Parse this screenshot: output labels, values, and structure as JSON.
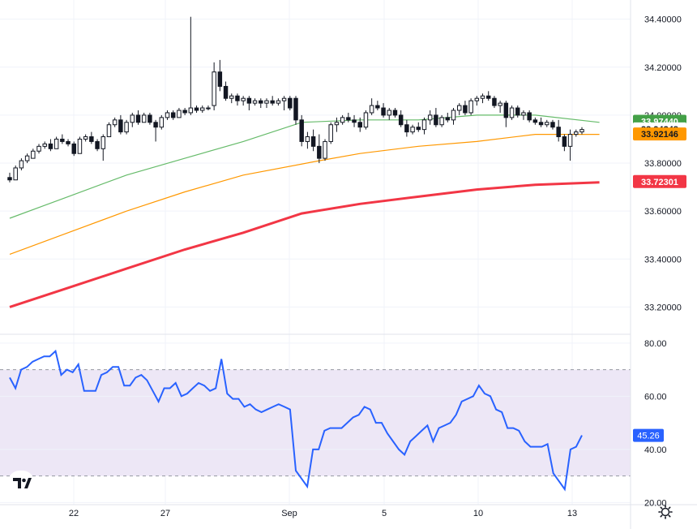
{
  "chart_data": [
    {
      "type": "candlestick",
      "title": "",
      "y_ticks": [
        "34.40000",
        "34.20000",
        "34.00000",
        "33.80000",
        "33.60000",
        "33.40000",
        "33.20000"
      ],
      "ylim": [
        33.1,
        34.48
      ],
      "x_ticks": [
        "22",
        "27",
        "Sep",
        "5",
        "10",
        "13"
      ],
      "candles": [
        [
          33.74,
          33.76,
          33.72,
          33.73
        ],
        [
          33.73,
          33.79,
          33.73,
          33.78
        ],
        [
          33.78,
          33.82,
          33.77,
          33.81
        ],
        [
          33.81,
          33.84,
          33.8,
          33.83
        ],
        [
          33.82,
          33.86,
          33.82,
          33.85
        ],
        [
          33.85,
          33.88,
          33.84,
          33.87
        ],
        [
          33.87,
          33.89,
          33.86,
          33.88
        ],
        [
          33.88,
          33.9,
          33.85,
          33.86
        ],
        [
          33.86,
          33.91,
          33.86,
          33.9
        ],
        [
          33.9,
          33.92,
          33.88,
          33.89
        ],
        [
          33.89,
          33.9,
          33.87,
          33.88
        ],
        [
          33.88,
          33.89,
          33.83,
          33.84
        ],
        [
          33.84,
          33.91,
          33.84,
          33.9
        ],
        [
          33.9,
          33.92,
          33.89,
          33.91
        ],
        [
          33.91,
          33.93,
          33.88,
          33.89
        ],
        [
          33.89,
          33.9,
          33.85,
          33.86
        ],
        [
          33.86,
          33.92,
          33.81,
          33.91
        ],
        [
          33.91,
          33.97,
          33.91,
          33.96
        ],
        [
          33.96,
          33.99,
          33.95,
          33.98
        ],
        [
          33.98,
          34.0,
          33.92,
          33.93
        ],
        [
          33.93,
          33.98,
          33.92,
          33.97
        ],
        [
          33.97,
          34.01,
          33.95,
          34.0
        ],
        [
          34.0,
          34.02,
          33.96,
          33.97
        ],
        [
          33.97,
          34.01,
          33.97,
          34.0
        ],
        [
          34.0,
          34.01,
          33.96,
          33.97
        ],
        [
          33.97,
          33.98,
          33.89,
          33.95
        ],
        [
          33.95,
          34.0,
          33.94,
          33.99
        ],
        [
          33.99,
          34.02,
          33.98,
          34.01
        ],
        [
          34.01,
          34.02,
          33.98,
          33.99
        ],
        [
          33.99,
          34.03,
          33.99,
          34.02
        ],
        [
          34.02,
          34.03,
          34.0,
          34.01
        ],
        [
          34.01,
          34.41,
          34.0,
          34.03
        ],
        [
          34.03,
          34.04,
          34.01,
          34.02
        ],
        [
          34.02,
          34.04,
          34.01,
          34.03
        ],
        [
          34.03,
          34.04,
          34.02,
          34.03
        ],
        [
          34.04,
          34.22,
          34.02,
          34.18
        ],
        [
          34.18,
          34.23,
          34.1,
          34.12
        ],
        [
          34.12,
          34.14,
          34.06,
          34.07
        ],
        [
          34.07,
          34.09,
          34.05,
          34.08
        ],
        [
          34.08,
          34.09,
          34.04,
          34.06
        ],
        [
          34.06,
          34.08,
          34.04,
          34.07
        ],
        [
          34.07,
          34.08,
          34.02,
          34.05
        ],
        [
          34.05,
          34.07,
          34.04,
          34.06
        ],
        [
          34.06,
          34.07,
          34.03,
          34.05
        ],
        [
          34.05,
          34.07,
          34.03,
          34.06
        ],
        [
          34.06,
          34.08,
          34.04,
          34.05
        ],
        [
          34.05,
          34.07,
          34.04,
          34.06
        ],
        [
          34.06,
          34.08,
          34.02,
          34.07
        ],
        [
          34.07,
          34.08,
          34.02,
          34.03
        ],
        [
          34.07,
          34.08,
          33.96,
          33.98
        ],
        [
          33.98,
          34.0,
          33.87,
          33.89
        ],
        [
          33.89,
          33.93,
          33.86,
          33.91
        ],
        [
          33.91,
          33.94,
          33.85,
          33.87
        ],
        [
          33.87,
          33.92,
          33.8,
          33.82
        ],
        [
          33.82,
          33.9,
          33.81,
          33.89
        ],
        [
          33.89,
          33.97,
          33.88,
          33.96
        ],
        [
          33.96,
          33.99,
          33.93,
          33.97
        ],
        [
          33.97,
          34.0,
          33.96,
          33.99
        ],
        [
          33.99,
          34.01,
          33.97,
          33.98
        ],
        [
          33.98,
          34.0,
          33.95,
          33.97
        ],
        [
          33.97,
          33.99,
          33.93,
          33.95
        ],
        [
          33.95,
          34.02,
          33.94,
          34.01
        ],
        [
          34.01,
          34.07,
          34.0,
          34.04
        ],
        [
          34.04,
          34.06,
          34.02,
          34.03
        ],
        [
          34.03,
          34.05,
          33.99,
          34.0
        ],
        [
          34.0,
          34.03,
          33.98,
          34.02
        ],
        [
          34.02,
          34.03,
          33.99,
          34.0
        ],
        [
          34.0,
          34.02,
          33.95,
          33.96
        ],
        [
          33.96,
          33.98,
          33.91,
          33.93
        ],
        [
          33.93,
          33.96,
          33.92,
          33.95
        ],
        [
          33.95,
          33.97,
          33.93,
          33.94
        ],
        [
          33.94,
          33.99,
          33.92,
          33.98
        ],
        [
          33.98,
          34.02,
          33.96,
          34.0
        ],
        [
          34.0,
          34.03,
          33.95,
          33.96
        ],
        [
          33.96,
          34.0,
          33.95,
          33.99
        ],
        [
          33.99,
          34.01,
          33.97,
          33.98
        ],
        [
          33.98,
          34.03,
          33.96,
          34.02
        ],
        [
          34.02,
          34.05,
          34.0,
          34.04
        ],
        [
          34.04,
          34.06,
          34.0,
          34.01
        ],
        [
          34.01,
          34.07,
          34.0,
          34.06
        ],
        [
          34.06,
          34.08,
          34.04,
          34.07
        ],
        [
          34.07,
          34.09,
          34.05,
          34.08
        ],
        [
          34.08,
          34.1,
          34.06,
          34.07
        ],
        [
          34.07,
          34.08,
          34.03,
          34.04
        ],
        [
          34.04,
          34.06,
          34.01,
          34.05
        ],
        [
          34.05,
          34.06,
          33.95,
          33.99
        ],
        [
          33.99,
          34.04,
          33.98,
          34.03
        ],
        [
          34.03,
          34.04,
          33.99,
          34.0
        ],
        [
          34.0,
          34.02,
          33.98,
          34.01
        ],
        [
          34.01,
          34.02,
          33.97,
          33.98
        ],
        [
          33.98,
          33.99,
          33.96,
          33.97
        ],
        [
          33.97,
          33.99,
          33.95,
          33.96
        ],
        [
          33.96,
          33.98,
          33.95,
          33.97
        ],
        [
          33.97,
          33.98,
          33.94,
          33.95
        ],
        [
          33.95,
          33.98,
          33.89,
          33.91
        ],
        [
          33.91,
          33.92,
          33.85,
          33.87
        ],
        [
          33.87,
          33.94,
          33.81,
          33.92
        ],
        [
          33.92,
          33.94,
          33.91,
          33.93
        ],
        [
          33.93,
          33.95,
          33.92,
          33.94
        ]
      ],
      "series": [
        {
          "name": "",
          "color": "#66bb6a",
          "values": [
            [
              0,
              33.57
            ],
            [
              10,
              33.66
            ],
            [
              20,
              33.75
            ],
            [
              30,
              33.82
            ],
            [
              40,
              33.89
            ],
            [
              50,
              33.97
            ],
            [
              60,
              33.98
            ],
            [
              70,
              33.98
            ],
            [
              80,
              34.0
            ],
            [
              90,
              34.0
            ],
            [
              101,
              33.97
            ]
          ]
        },
        {
          "name": "",
          "color": "#ff9800",
          "values": [
            [
              0,
              33.42
            ],
            [
              10,
              33.51
            ],
            [
              20,
              33.6
            ],
            [
              30,
              33.68
            ],
            [
              40,
              33.75
            ],
            [
              53,
              33.81
            ],
            [
              60,
              33.84
            ],
            [
              70,
              33.87
            ],
            [
              80,
              33.89
            ],
            [
              90,
              33.92
            ],
            [
              101,
              33.92
            ]
          ]
        },
        {
          "name": "",
          "color": "#f23645",
          "values": [
            [
              0,
              33.2
            ],
            [
              10,
              33.28
            ],
            [
              20,
              33.36
            ],
            [
              30,
              33.44
            ],
            [
              40,
              33.51
            ],
            [
              50,
              33.59
            ],
            [
              60,
              33.63
            ],
            [
              70,
              33.66
            ],
            [
              80,
              33.69
            ],
            [
              90,
              33.71
            ],
            [
              101,
              33.72
            ]
          ]
        }
      ],
      "price_labels": [
        {
          "text": "33.97440",
          "value": 33.9744,
          "bg": "#43a047",
          "fg": "#ffffff"
        },
        {
          "text": "33.94248",
          "value": 33.94248,
          "bg": "#ffffff",
          "fg": "#131722"
        },
        {
          "text": "33.92146",
          "value": 33.92146,
          "bg": "#ff9800",
          "fg": "#131722"
        },
        {
          "text": "33.72301",
          "value": 33.72301,
          "bg": "#f23645",
          "fg": "#ffffff"
        }
      ]
    },
    {
      "type": "line",
      "title": "",
      "y_ticks": [
        "80.00",
        "60.00",
        "40.00",
        "20.00"
      ],
      "ylim": [
        19.5,
        83
      ],
      "band": [
        30,
        70
      ],
      "series": [
        {
          "name": "",
          "color": "#2962ff",
          "values": [
            67,
            63,
            70,
            71,
            73,
            74,
            75,
            75,
            77,
            68,
            70,
            69,
            72,
            62,
            62,
            62,
            68,
            69,
            71,
            71,
            64,
            64,
            67,
            68,
            66,
            62,
            58,
            63,
            63,
            65,
            60,
            61,
            63,
            65,
            64,
            62,
            63,
            74,
            61,
            59,
            59,
            56,
            57,
            55,
            54,
            55,
            56,
            57,
            56,
            55,
            32,
            29,
            26,
            40,
            40,
            47,
            48,
            48,
            48,
            50,
            52,
            53,
            56,
            55,
            50,
            50,
            46,
            43,
            40,
            38,
            43,
            45,
            47,
            49,
            43,
            48,
            49,
            50,
            53,
            58,
            59,
            60,
            64,
            61,
            60,
            55,
            54,
            48,
            48,
            47,
            43,
            41,
            41,
            41,
            42,
            31,
            28,
            25,
            40,
            41,
            45.26
          ]
        }
      ],
      "last_label": {
        "text": "45.26",
        "value": 45.26,
        "bg": "#2962ff",
        "fg": "#ffffff"
      }
    }
  ],
  "colors": {
    "up": "#ffffff",
    "down": "#131722",
    "grid": "#f0f3fa",
    "band_fill": "#ede7f6",
    "band_line": "#9598a1"
  },
  "logo_icon": "tradingview-logo-icon",
  "settings_icon": "gear-icon"
}
